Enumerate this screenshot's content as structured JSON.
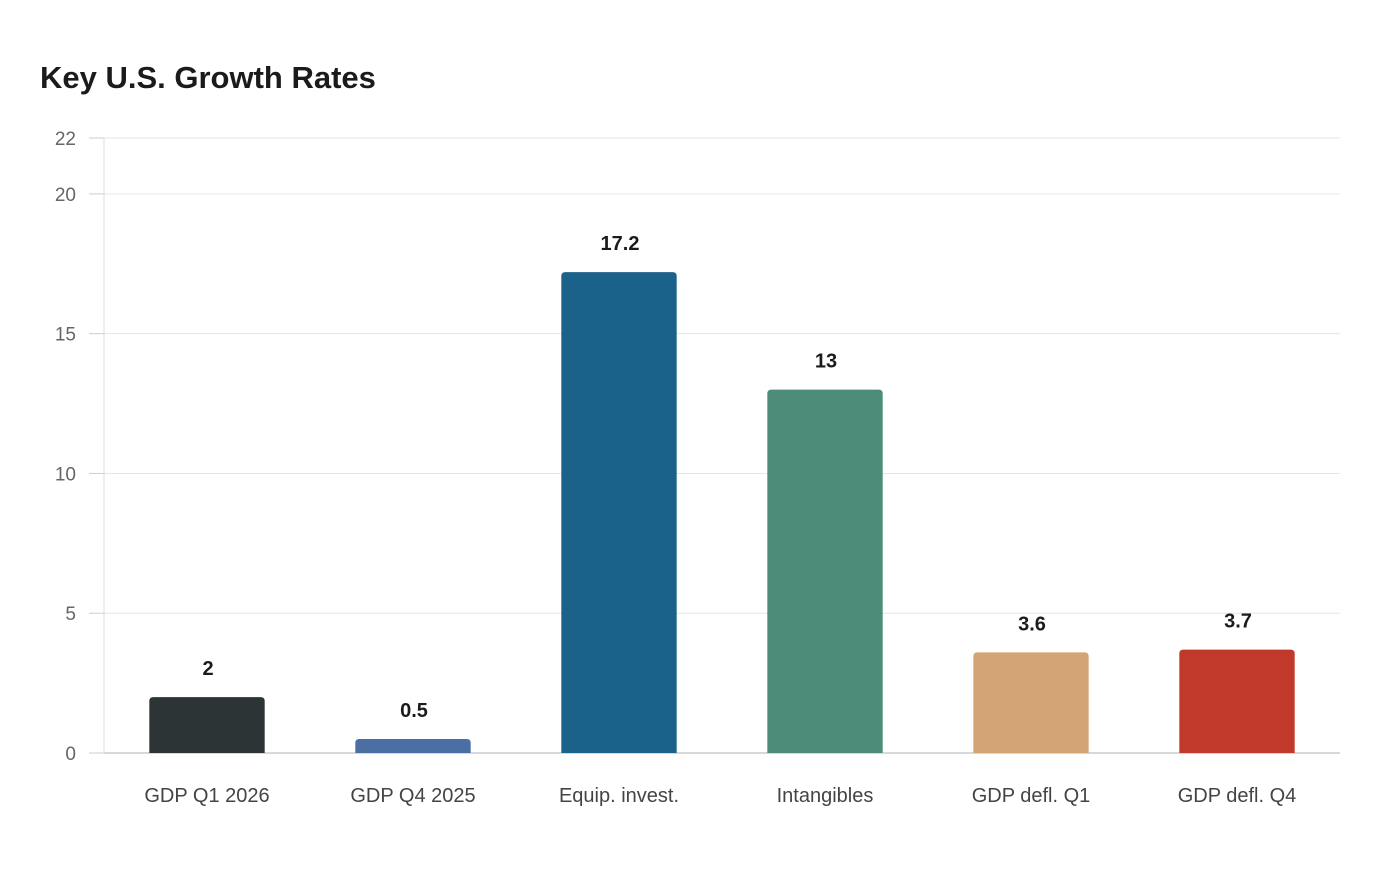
{
  "chart_data": {
    "type": "bar",
    "title": "Key U.S. Growth Rates",
    "xlabel": "",
    "ylabel": "",
    "categories": [
      "GDP Q1 2026",
      "GDP Q4 2025",
      "Equip. invest.",
      "Intangibles",
      "GDP defl. Q1",
      "GDP defl. Q4"
    ],
    "values": [
      2,
      0.5,
      17.2,
      13,
      3.6,
      3.7
    ],
    "colors": [
      "#2d3436",
      "#4a6fa5",
      "#1a6289",
      "#4e8c7a",
      "#d3a474",
      "#c0392b"
    ],
    "ylim": [
      0,
      22
    ],
    "yticks": [
      0,
      5,
      10,
      15,
      20,
      22
    ],
    "grid": true,
    "legend": "none"
  }
}
